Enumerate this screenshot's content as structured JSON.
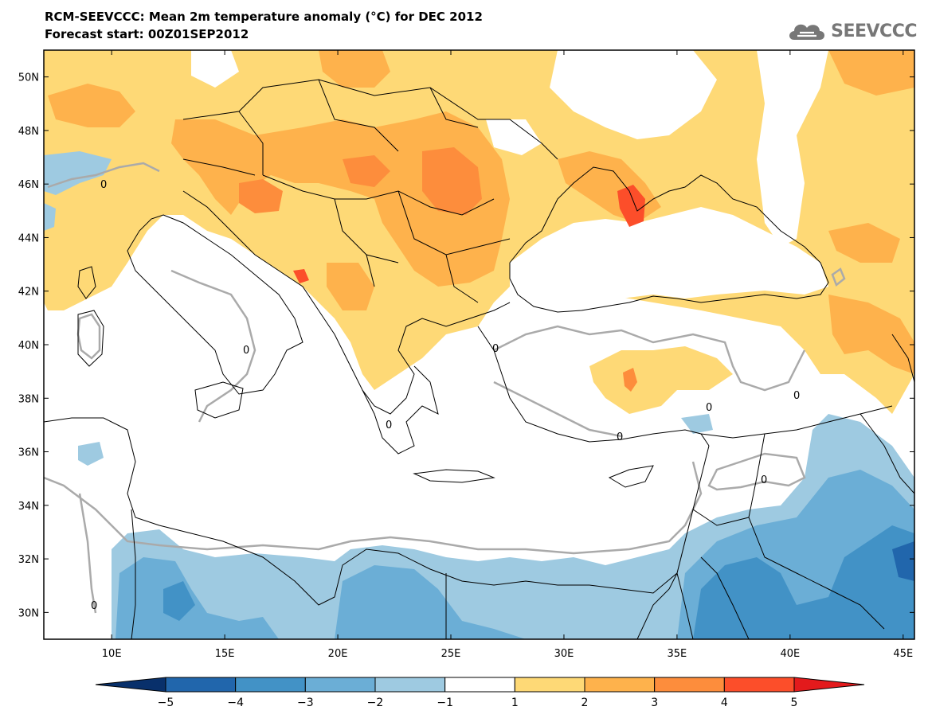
{
  "header": {
    "title_line1": "RCM-SEEVCCC: Mean 2m temperature anomaly (°C) for DEC 2012",
    "title_line2": "Forecast start: 00Z01SEP2012",
    "logo_text": "SEEVCCC",
    "logo_icon": "cloud-icon"
  },
  "map": {
    "lon_range": [
      7,
      45.5
    ],
    "lat_range": [
      29,
      51
    ],
    "lat_labels": [
      "30N",
      "32N",
      "34N",
      "36N",
      "38N",
      "40N",
      "42N",
      "44N",
      "46N",
      "48N",
      "50N"
    ],
    "lon_labels": [
      "10E",
      "15E",
      "20E",
      "25E",
      "30E",
      "35E",
      "40E",
      "45E"
    ],
    "contour_label": "0"
  },
  "colorbar": {
    "labels": [
      "−5",
      "−4",
      "−3",
      "−2",
      "−1",
      "1",
      "2",
      "3",
      "4",
      "5"
    ],
    "colors": [
      "#08306b",
      "#2166ac",
      "#4292c6",
      "#6baed6",
      "#9ecae1",
      "#ffffff",
      "#fed976",
      "#feb24c",
      "#fd8d3c",
      "#fc4e2a",
      "#e31a1c"
    ]
  },
  "colors": {
    "warm1": "#fed976",
    "warm2": "#feb24c",
    "warm3": "#fd8d3c",
    "warm4": "#fc4e2a",
    "cool1": "#9ecae1",
    "cool2": "#6baed6",
    "cool3": "#4292c6",
    "cool4": "#2166ac",
    "contour": "#aaaaaa",
    "border": "#000000"
  }
}
